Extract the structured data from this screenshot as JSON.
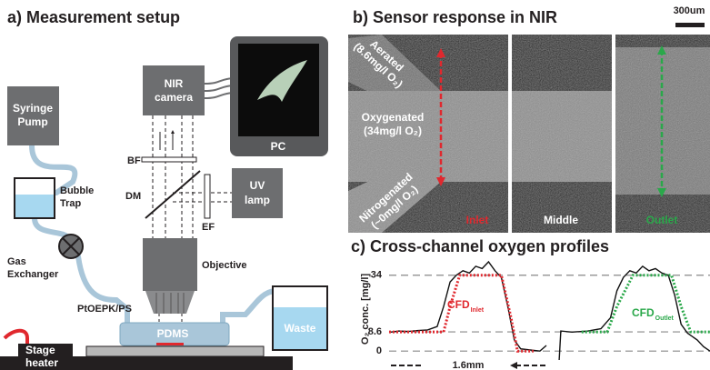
{
  "panel_a": {
    "title": "a) Measurement setup",
    "labels": {
      "syringe_pump": [
        "Syringe",
        "Pump"
      ],
      "nir_camera": [
        "NIR",
        "camera"
      ],
      "pc": "PC",
      "bf": "BF",
      "dm": "DM",
      "ef": "EF",
      "uv_lamp": [
        "UV",
        "lamp"
      ],
      "bubble_trap": [
        "Bubble",
        "Trap"
      ],
      "gas_exchanger": [
        "Gas",
        "Exchanger"
      ],
      "objective": "Objective",
      "sensor": "PtOEPK/PS",
      "chip": "PDMS",
      "waste": "Waste",
      "stage": [
        "Stage",
        "heater"
      ]
    }
  },
  "panel_b": {
    "title": "b) Sensor response in NIR",
    "scale_bar": "300um",
    "regions": {
      "aerated": [
        "Aerated",
        "(8.6mg/l O₂)"
      ],
      "oxygenated": [
        "Oxygenated",
        "(34mg/l O₂)"
      ],
      "nitrogenated": [
        "Nitrogenated",
        "(~0mg/l O₂)"
      ]
    },
    "sections": [
      "Inlet",
      "Middle",
      "Outlet"
    ]
  },
  "chart_data": {
    "type": "line",
    "title": "c) Cross-channel oxygen profiles",
    "ylabel": "O₂ conc. [mg/l]",
    "xlim": [
      0,
      100
    ],
    "ylim": [
      -4,
      40
    ],
    "yticks": [
      0,
      8.6,
      34
    ],
    "grid": true,
    "scale_label": "1.6mm",
    "series": [
      {
        "color": "#111111",
        "x": [
          0,
          3,
          6,
          9,
          12,
          15,
          17,
          19,
          21,
          23,
          25,
          27,
          29,
          31,
          33,
          35,
          37,
          39,
          41,
          44,
          47,
          49,
          null,
          53,
          53.5,
          57,
          62,
          66,
          69,
          71,
          73,
          75,
          77,
          79,
          81,
          83,
          85,
          87,
          89,
          91,
          93,
          96,
          98,
          100
        ],
        "values": [
          8.4,
          9,
          8.8,
          9.2,
          9.5,
          11,
          20,
          31,
          34,
          36,
          35,
          38,
          37,
          40,
          36,
          33,
          20,
          5,
          1,
          0.5,
          0,
          2.5,
          null,
          -4,
          9,
          8.5,
          9,
          10,
          15,
          27,
          33,
          36,
          35,
          38,
          36,
          37,
          35,
          34,
          25,
          12,
          8,
          5,
          2,
          0
        ]
      },
      {
        "name": "CFD",
        "subscript": "Inlet",
        "color": "#e0282e",
        "dash": true,
        "x": [
          0,
          17,
          19,
          22,
          35,
          38,
          40,
          45
        ],
        "values": [
          8.6,
          8.6,
          20,
          34,
          34,
          15,
          0,
          0
        ]
      },
      {
        "name": "CFD",
        "subscript": "Outlet",
        "color": "#2aa84a",
        "dash": true,
        "x": [
          60,
          68,
          71,
          76,
          88,
          91,
          94,
          100
        ],
        "values": [
          8.6,
          8.6,
          20,
          34,
          34,
          20,
          8.6,
          8.6
        ]
      }
    ]
  }
}
